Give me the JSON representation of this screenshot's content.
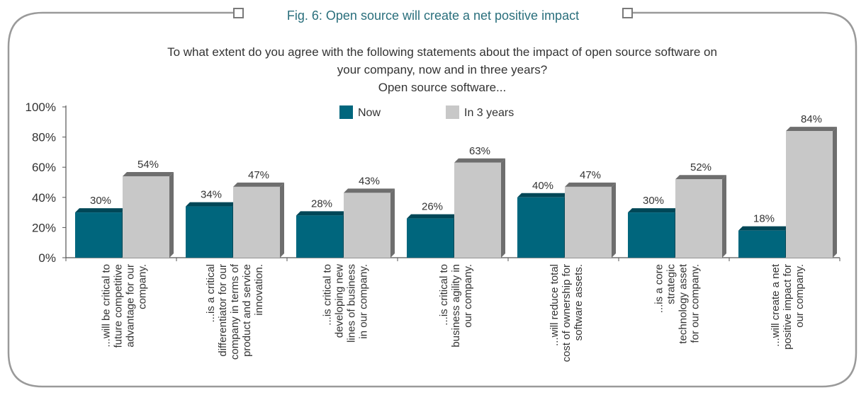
{
  "figure_title": "Fig. 6: Open source will create a net positive impact",
  "subtitle_lines": [
    "To what extent do you agree with the following statements about the impact of open source software on",
    "your company, now and in three years?",
    "Open source software..."
  ],
  "colors": {
    "now": "#00667d",
    "now_side": "#004757",
    "future": "#c8c8c8",
    "future_side": "#6e6e6e",
    "frame": "#9a9a9a",
    "title": "#2a6f7c"
  },
  "chart_data": {
    "type": "bar",
    "title": "Fig. 6: Open source will create a net positive impact",
    "categories": [
      [
        "...will be critical to",
        "future competitive",
        "advantage for our",
        "company."
      ],
      [
        "...is a critical",
        "differentiator for our",
        "company in terms of",
        "product and service",
        "innovation."
      ],
      [
        "...is critical to",
        "developing new",
        "lines of business",
        "in our company."
      ],
      [
        "...is critical to",
        "business agility in",
        "our company."
      ],
      [
        "...will reduce total",
        "cost of ownership for",
        "software assets."
      ],
      [
        "...is a core",
        "strategic",
        "technology asset",
        "for our company."
      ],
      [
        "...will create a net",
        "positive impact for",
        "our company."
      ]
    ],
    "series": [
      {
        "name": "Now",
        "values": [
          30,
          34,
          28,
          26,
          40,
          30,
          18
        ],
        "labels": [
          "30%",
          "34%",
          "28%",
          "26%",
          "40%",
          "30%",
          "18%"
        ]
      },
      {
        "name": "In 3 years",
        "values": [
          54,
          47,
          43,
          63,
          47,
          52,
          84
        ],
        "labels": [
          "54%",
          "47%",
          "43%",
          "63%",
          "47%",
          "52%",
          "84%"
        ]
      }
    ],
    "y_ticks": [
      "0%",
      "20%",
      "40%",
      "60%",
      "80%",
      "100%"
    ],
    "ylim": [
      0,
      100
    ],
    "grid": false,
    "legend_position": "top-center"
  }
}
